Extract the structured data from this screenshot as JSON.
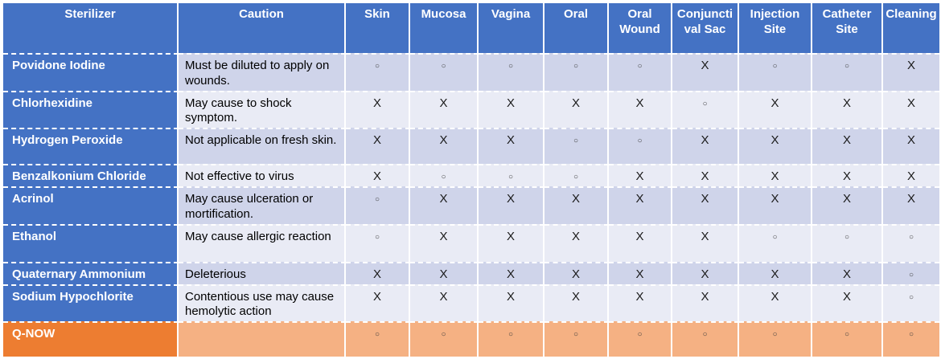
{
  "table": {
    "columns": [
      {
        "label": "Sterilizer"
      },
      {
        "label": "Caution"
      },
      {
        "label": "Skin"
      },
      {
        "label": "Mucosa"
      },
      {
        "label": "Vagina"
      },
      {
        "label": "Oral"
      },
      {
        "label": "Oral Wound"
      },
      {
        "label": "Conjunctival Sac"
      },
      {
        "label": "Injection Site"
      },
      {
        "label": "Catheter Site"
      },
      {
        "label": "Cleaning"
      }
    ],
    "marks_legend": {
      "circle": "○",
      "cross": "X"
    },
    "rows": [
      {
        "sterilizer": "Povidone Iodine",
        "caution": "Must be diluted to apply on wounds.",
        "marks": [
          "○",
          "○",
          "○",
          "○",
          "○",
          "X",
          "○",
          "○",
          "X"
        ]
      },
      {
        "sterilizer": "Chlorhexidine",
        "caution": "May cause to shock symptom.",
        "marks": [
          "X",
          "X",
          "X",
          "X",
          "X",
          "○",
          "X",
          "X",
          "X"
        ]
      },
      {
        "sterilizer": "Hydrogen Peroxide",
        "caution": "Not applicable on fresh skin.",
        "marks": [
          "X",
          "X",
          "X",
          "○",
          "○",
          "X",
          "X",
          "X",
          "X"
        ]
      },
      {
        "sterilizer": "Benzalkonium Chloride",
        "caution": "Not effective to virus",
        "marks": [
          "X",
          "○",
          "○",
          "○",
          "X",
          "X",
          "X",
          "X",
          "X"
        ]
      },
      {
        "sterilizer": "Acrinol",
        "caution": "May cause ulceration or mortification.",
        "marks": [
          "○",
          "X",
          "X",
          "X",
          "X",
          "X",
          "X",
          "X",
          "X"
        ]
      },
      {
        "sterilizer": "Ethanol",
        "caution": "May cause allergic reaction",
        "marks": [
          "○",
          "X",
          "X",
          "X",
          "X",
          "X",
          "○",
          "○",
          "○"
        ]
      },
      {
        "sterilizer": "Quaternary Ammonium",
        "caution": "Deleterious",
        "marks": [
          "X",
          "X",
          "X",
          "X",
          "X",
          "X",
          "X",
          "X",
          "○"
        ]
      },
      {
        "sterilizer": "Sodium Hypochlorite",
        "caution": "Contentious use may cause hemolytic action",
        "marks": [
          "X",
          "X",
          "X",
          "X",
          "X",
          "X",
          "X",
          "X",
          "○"
        ]
      },
      {
        "sterilizer": "Q-NOW",
        "caution": "",
        "accent": true,
        "marks": [
          "○",
          "○",
          "○",
          "○",
          "○",
          "○",
          "○",
          "○",
          "○"
        ]
      }
    ]
  },
  "colors": {
    "header_blue": "#4472C4",
    "band_dark": "#CFD4EA",
    "band_light": "#E9EBF5",
    "accent_orange": "#ED7D31",
    "accent_orange_light": "#F5B183",
    "border_white": "#FFFFFF",
    "text_light": "#FFFFFF",
    "text_dark": "#000000"
  }
}
